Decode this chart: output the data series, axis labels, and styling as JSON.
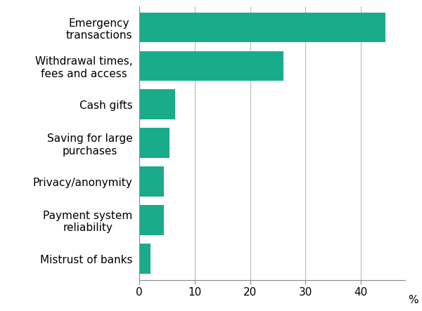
{
  "categories": [
    "Mistrust of banks",
    "Payment system\nreliability",
    "Privacy/anonymity",
    "Saving for large\npurchases",
    "Cash gifts",
    "Withdrawal times,\nfees and access",
    "Emergency\ntransactions"
  ],
  "values": [
    2.0,
    4.5,
    4.5,
    5.5,
    6.5,
    26.0,
    44.5
  ],
  "bar_color": "#1aac8a",
  "xlim": [
    0,
    48
  ],
  "xticks": [
    0,
    10,
    20,
    30,
    40
  ],
  "xlabel": "%",
  "background_color": "#ffffff",
  "grid_color": "#bbbbbb",
  "label_fontsize": 11,
  "tick_fontsize": 11
}
